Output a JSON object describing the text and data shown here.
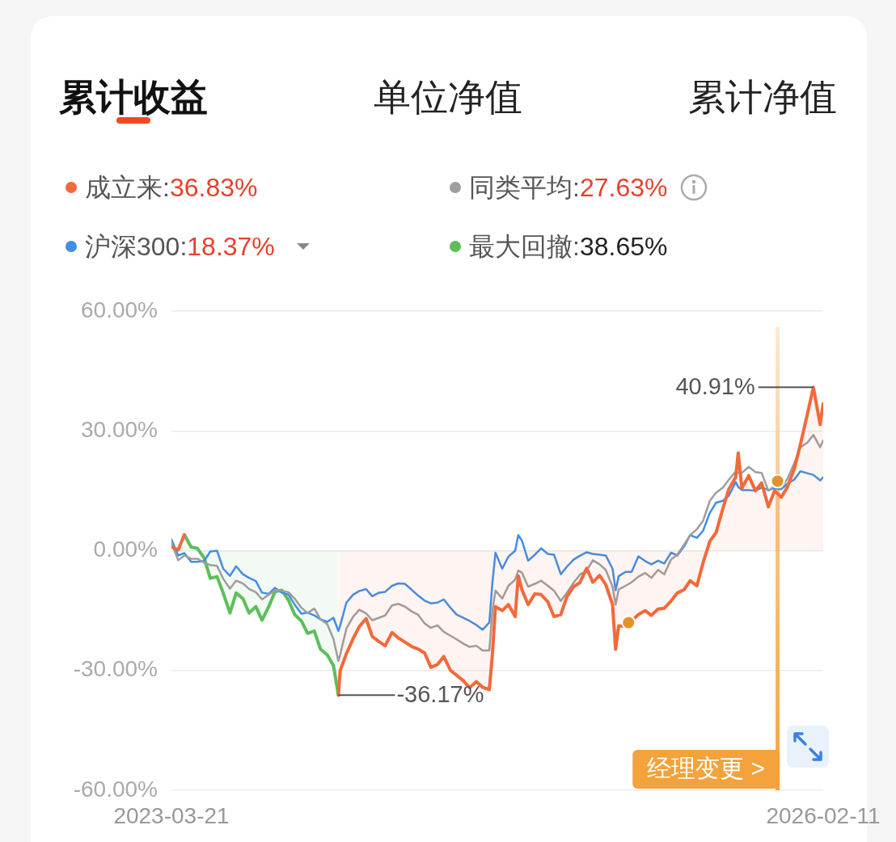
{
  "chart_data": {
    "type": "line",
    "title": "累计收益",
    "annotations": [
      {
        "text": "-36.17%",
        "x": "2023-12-17",
        "y": -36.17
      },
      {
        "text": "40.91%",
        "x": "2026-01-26",
        "y": 40.91
      },
      "单位净值",
      "累计净值"
    ],
    "x": [
      "2023-03-21",
      "2023-04-01",
      "2023-04-11",
      "2023-04-22",
      "2023-05-02",
      "2023-05-13",
      "2023-05-23",
      "2023-06-03",
      "2023-06-13",
      "2023-06-24",
      "2023-07-04",
      "2023-07-15",
      "2023-07-25",
      "2023-08-05",
      "2023-08-15",
      "2023-08-26",
      "2023-09-05",
      "2023-09-16",
      "2023-09-27",
      "2023-10-07",
      "2023-10-18",
      "2023-10-28",
      "2023-11-08",
      "2023-11-18",
      "2023-11-29",
      "2023-12-09",
      "2023-12-17",
      "2023-12-20",
      "2023-12-30",
      "2024-01-10",
      "2024-01-20",
      "2024-01-31",
      "2024-02-10",
      "2024-02-21",
      "2024-03-02",
      "2024-03-13",
      "2024-03-23",
      "2024-04-03",
      "2024-04-14",
      "2024-04-24",
      "2024-05-05",
      "2024-05-15",
      "2024-05-26",
      "2024-06-05",
      "2024-06-16",
      "2024-06-26",
      "2024-07-07",
      "2024-07-17",
      "2024-07-28",
      "2024-08-07",
      "2024-08-18",
      "2024-08-23",
      "2024-08-28",
      "2024-09-08",
      "2024-09-18",
      "2024-09-29",
      "2024-10-04",
      "2024-10-10",
      "2024-10-20",
      "2024-10-31",
      "2024-11-10",
      "2024-11-21",
      "2024-12-01",
      "2024-12-12",
      "2024-12-22",
      "2025-01-02",
      "2025-01-12",
      "2025-01-23",
      "2025-02-02",
      "2025-02-13",
      "2025-02-23",
      "2025-03-06",
      "2025-03-11",
      "2025-03-16",
      "2025-03-27",
      "2025-04-06",
      "2025-04-17",
      "2025-04-28",
      "2025-05-08",
      "2025-05-19",
      "2025-05-29",
      "2025-06-09",
      "2025-06-19",
      "2025-06-30",
      "2025-07-10",
      "2025-07-21",
      "2025-07-31",
      "2025-08-11",
      "2025-08-21",
      "2025-09-01",
      "2025-09-11",
      "2025-09-22",
      "2025-09-26",
      "2025-10-02",
      "2025-10-13",
      "2025-10-24",
      "2025-11-03",
      "2025-11-14",
      "2025-11-24",
      "2025-12-05",
      "2025-12-15",
      "2025-12-26",
      "2026-01-05",
      "2026-01-16",
      "2026-01-26",
      "2026-02-06",
      "2026-02-11"
    ],
    "series": [
      {
        "name": "成立来:36.83%",
        "type": "area",
        "color": "#f2693a",
        "values": [
          1.0,
          0.2,
          4.0,
          null,
          null,
          null,
          null,
          null,
          null,
          null,
          null,
          null,
          null,
          null,
          null,
          null,
          null,
          null,
          null,
          null,
          null,
          null,
          null,
          null,
          null,
          null,
          -36.17,
          -30.0,
          -25.8,
          -22.0,
          -19.0,
          -17.0,
          -21.5,
          -22.8,
          -23.8,
          -20.5,
          -21.8,
          -22.9,
          -24.0,
          -24.6,
          -25.6,
          -29.2,
          -28.5,
          -26.5,
          -30.0,
          -31.2,
          -32.6,
          -34.3,
          -32.8,
          -34.2,
          -34.8,
          -26.0,
          -14.0,
          -15.0,
          -13.5,
          -16.5,
          -6.3,
          -9.8,
          -13.5,
          -10.8,
          -11.0,
          -12.8,
          -16.5,
          -16.0,
          -11.5,
          -9.0,
          -8.0,
          -4.4,
          -7.9,
          -6.2,
          -8.5,
          -13.5,
          -24.7,
          -18.8,
          -18.9,
          -17.6,
          -16.0,
          -15.0,
          -16.2,
          -14.6,
          -14.4,
          -12.6,
          -10.6,
          -9.8,
          -7.5,
          -8.8,
          -3.0,
          2.4,
          4.5,
          10.5,
          15.5,
          18.4,
          24.5,
          15.6,
          18.8,
          15.0,
          17.0,
          11.0,
          15.0,
          13.4,
          16.0,
          20.5,
          26.6,
          34.0,
          40.91,
          31.6,
          36.83
        ]
      },
      {
        "name": "同类平均:27.63%",
        "type": "line",
        "color": "#9e9e9e",
        "values": [
          2.0,
          -2.4,
          -1.2,
          -2.0,
          -2.0,
          -3.0,
          -3.6,
          -3.8,
          -7.0,
          -9.5,
          -7.5,
          -8.2,
          -9.6,
          -10.4,
          -12.2,
          -11.0,
          -9.9,
          -10.0,
          -10.4,
          -12.0,
          -14.3,
          -15.6,
          -14.5,
          -17.2,
          -18.4,
          -22.1,
          -27.6,
          -26.0,
          -19.5,
          -16.5,
          -14.8,
          -15.7,
          -17.4,
          -16.8,
          -16.2,
          -13.7,
          -13.3,
          -14.0,
          -15.2,
          -16.0,
          -18.2,
          -19.3,
          -18.7,
          -20.3,
          -21.3,
          -22.2,
          -23.3,
          -24.1,
          -23.8,
          -25.0,
          -25.0,
          -15.0,
          -10.0,
          -12.0,
          -8.8,
          -7.2,
          -5.0,
          -5.5,
          -9.0,
          -8.3,
          -7.5,
          -8.8,
          -10.0,
          -12.6,
          -10.5,
          -8.0,
          -6.0,
          -5.0,
          -2.4,
          -3.4,
          -4.8,
          -9.0,
          -13.5,
          -9.7,
          -8.8,
          -7.9,
          -6.5,
          -5.6,
          -6.8,
          -4.8,
          -5.9,
          -2.2,
          -1.0,
          1.5,
          3.9,
          5.4,
          7.5,
          12.5,
          14.5,
          15.8,
          17.8,
          19.8,
          19.5,
          19.5,
          21.0,
          19.7,
          19.5,
          15.0,
          16.2,
          15.8,
          18.0,
          21.9,
          25.9,
          27.0,
          29.0,
          25.9,
          27.63
        ]
      },
      {
        "name": "沪深300:18.37%",
        "type": "line",
        "color": "#3f8fe6",
        "values": [
          2.8,
          -1.2,
          -0.6,
          -2.8,
          -2.8,
          -2.6,
          -0.2,
          0.0,
          -4.5,
          -6.3,
          -3.9,
          -5.9,
          -6.8,
          -7.6,
          -10.5,
          -10.8,
          -9.3,
          -10.5,
          -11.0,
          -13.5,
          -15.8,
          -15.5,
          -16.2,
          -17.2,
          -17.8,
          -16.8,
          -20.1,
          -18.7,
          -13.0,
          -11.0,
          -10.1,
          -9.6,
          -11.4,
          -10.5,
          -10.3,
          -8.8,
          -8.2,
          -8.3,
          -9.8,
          -11.2,
          -12.5,
          -13.2,
          -13.0,
          -12.2,
          -14.3,
          -16.0,
          -16.8,
          -17.6,
          -18.6,
          -19.8,
          -18.0,
          -8.0,
          -0.5,
          -4.5,
          -1.5,
          0.0,
          3.9,
          2.5,
          -2.5,
          -1.0,
          0.6,
          -0.8,
          -1.0,
          -5.9,
          -4.0,
          -2.2,
          -1.3,
          -0.4,
          -0.8,
          -1.0,
          -1.2,
          -4.5,
          -9.9,
          -6.4,
          -5.3,
          -5.3,
          -1.4,
          -2.6,
          -3.4,
          -2.5,
          -3.2,
          -0.5,
          -1.2,
          1.0,
          3.9,
          3.2,
          5.0,
          9.5,
          12.0,
          12.5,
          13.8,
          17.2,
          16.0,
          15.2,
          15.2,
          15.0,
          15.8,
          15.2,
          15.6,
          15.4,
          16.8,
          17.8,
          19.9,
          19.4,
          19.0,
          17.6,
          18.37
        ]
      },
      {
        "name": "最大回撤:38.65%",
        "type": "area",
        "color": "#5cbf5a",
        "x": [
          "2023-04-11",
          "2023-04-22",
          "2023-05-02",
          "2023-05-13",
          "2023-05-23",
          "2023-06-03",
          "2023-06-13",
          "2023-06-24",
          "2023-07-04",
          "2023-07-15",
          "2023-07-25",
          "2023-08-05",
          "2023-08-15",
          "2023-08-26",
          "2023-09-05",
          "2023-09-16",
          "2023-09-27",
          "2023-10-07",
          "2023-10-18",
          "2023-10-28",
          "2023-11-08",
          "2023-11-18",
          "2023-11-29",
          "2023-12-09",
          "2023-12-17"
        ],
        "values": [
          4.0,
          0.9,
          0.6,
          -1.8,
          -6.9,
          -6.5,
          -10.6,
          -15.6,
          -10.6,
          -12.0,
          -15.6,
          -14.0,
          -17.4,
          -14.0,
          -10.3,
          -9.9,
          -12.4,
          -16.0,
          -17.6,
          -20.7,
          -20.1,
          -24.7,
          -26.1,
          -28.8,
          -36.17
        ]
      },
      {
        "type": "scatter",
        "color": "#e3922c",
        "marker": "circle",
        "x": [
          "2025-04-01",
          "2025-11-29"
        ],
        "values": [
          -18.0,
          17.4
        ]
      }
    ],
    "ref_lines": [
      {
        "axis": "x",
        "value": "2025-11-29",
        "label": "经理变更 >",
        "color": "#f3a23c"
      }
    ],
    "xlim": [
      "2023-03-21",
      "2026-02-11"
    ],
    "xticks": [
      "2023-03-21",
      "2026-02-11"
    ],
    "ylim": [
      -60,
      60
    ],
    "yticks": [
      {
        "value": -60,
        "label": "-60.00%"
      },
      {
        "value": -30,
        "label": "-30.00%"
      },
      {
        "value": 0,
        "label": "0.00%"
      },
      {
        "value": 30,
        "label": "30.00%"
      },
      {
        "value": 60,
        "label": "60.00%"
      }
    ],
    "grid": "y",
    "legend": "top"
  }
}
